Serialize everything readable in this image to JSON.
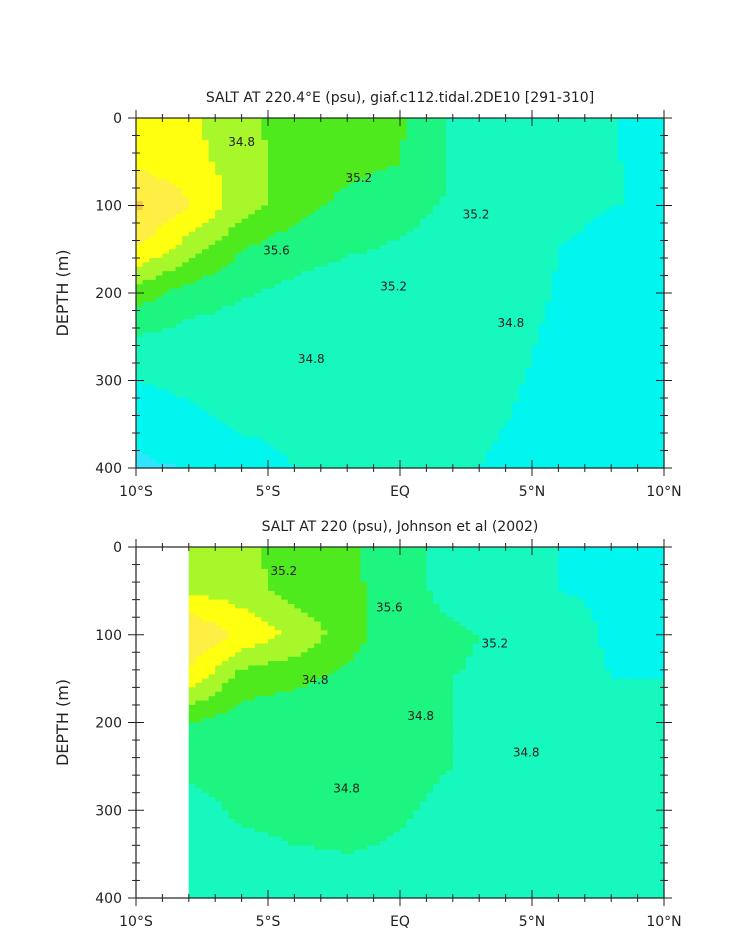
{
  "chart_data": [
    {
      "type": "heatmap",
      "title": "SALT AT 220.4°E (psu), giaf.c112.tidal.2DE10 [291-310]",
      "xlabel": "",
      "ylabel": "DEPTH (m)",
      "x_tick_labels": [
        "10°S",
        "5°S",
        "EQ",
        "5°N",
        "10°N"
      ],
      "x_tick_values": [
        -10,
        -5,
        0,
        5,
        10
      ],
      "xlim": [
        -10,
        10
      ],
      "y_tick_labels": [
        "0",
        "100",
        "200",
        "300",
        "400"
      ],
      "y_tick_values": [
        0,
        100,
        200,
        300,
        400
      ],
      "ylim": [
        0,
        400
      ],
      "y_inverted": true,
      "data_xlim": [
        -10,
        10
      ],
      "contour_levels": [
        34.2,
        34.4,
        34.6,
        34.8,
        35.0,
        35.2,
        35.4,
        35.6,
        35.8,
        36.0
      ],
      "contour_labels": [
        "34.8",
        "35.2",
        "35.2",
        "35.6",
        "35.2",
        "34.8",
        "34.8"
      ],
      "background_value": 34.6,
      "salinity_cells": {
        "lat": [
          -10,
          -8,
          -6,
          -4,
          -2,
          0,
          2,
          4,
          6,
          8,
          10
        ],
        "depth": [
          10,
          50,
          100,
          150,
          200,
          250,
          300,
          350,
          400
        ],
        "values": [
          [
            35.45,
            35.44,
            35.26,
            35.1,
            35.05,
            35.02,
            34.75,
            34.68,
            34.62,
            34.61,
            34.5
          ],
          [
            35.55,
            35.48,
            35.3,
            35.12,
            35.06,
            35.01,
            34.78,
            34.69,
            34.62,
            34.61,
            34.56
          ],
          [
            35.85,
            35.62,
            35.3,
            35.08,
            34.95,
            34.85,
            34.78,
            34.7,
            34.61,
            34.6,
            34.6
          ],
          [
            35.6,
            35.3,
            35.0,
            34.88,
            34.82,
            34.78,
            34.74,
            34.69,
            34.6,
            34.59,
            34.59
          ],
          [
            35.1,
            34.92,
            34.82,
            34.75,
            34.7,
            34.68,
            34.67,
            34.66,
            34.59,
            34.58,
            34.58
          ],
          [
            34.8,
            34.72,
            34.69,
            34.68,
            34.67,
            34.66,
            34.65,
            34.63,
            34.58,
            34.57,
            34.57
          ],
          [
            34.6,
            34.65,
            34.66,
            34.66,
            34.65,
            34.64,
            34.63,
            34.61,
            34.58,
            34.57,
            34.57
          ],
          [
            34.42,
            34.55,
            34.63,
            34.65,
            34.64,
            34.63,
            34.62,
            34.6,
            34.58,
            34.57,
            34.57
          ],
          [
            34.38,
            34.4,
            34.5,
            34.6,
            34.62,
            34.62,
            34.61,
            34.59,
            34.58,
            34.57,
            34.57
          ]
        ]
      }
    },
    {
      "type": "heatmap",
      "title": "SALT AT 220 (psu), Johnson et al (2002)",
      "xlabel": "",
      "ylabel": "DEPTH (m)",
      "x_tick_labels": [
        "10°S",
        "5°S",
        "EQ",
        "5°N",
        "10°N"
      ],
      "x_tick_values": [
        -10,
        -5,
        0,
        5,
        10
      ],
      "xlim": [
        -10,
        10
      ],
      "y_tick_labels": [
        "0",
        "100",
        "200",
        "300",
        "400"
      ],
      "y_tick_values": [
        0,
        100,
        200,
        300,
        400
      ],
      "ylim": [
        0,
        400
      ],
      "y_inverted": true,
      "data_xlim": [
        -8,
        10
      ],
      "contour_levels": [
        34.2,
        34.4,
        34.6,
        34.8,
        35.0,
        35.2,
        35.4,
        35.6,
        35.8,
        36.0
      ],
      "contour_labels": [
        "35.2",
        "35.6",
        "35.2",
        "34.8",
        "34.8",
        "34.8",
        "34.8"
      ],
      "background_value": 34.7,
      "salinity_cells": {
        "lat": [
          -8,
          -6,
          -4,
          -2,
          0,
          2,
          4,
          6,
          8,
          10
        ],
        "depth": [
          10,
          50,
          100,
          150,
          200,
          250,
          300,
          350,
          400
        ],
        "values": [
          [
            35.3,
            35.26,
            35.1,
            35.05,
            34.82,
            34.78,
            34.65,
            34.6,
            34.45,
            34.4
          ],
          [
            35.38,
            35.3,
            35.12,
            35.08,
            34.85,
            34.76,
            34.7,
            34.6,
            34.55,
            34.5
          ],
          [
            35.8,
            35.55,
            35.35,
            35.1,
            34.86,
            34.82,
            34.78,
            34.76,
            34.55,
            34.6
          ],
          [
            35.55,
            35.1,
            35.05,
            34.95,
            34.84,
            34.8,
            34.78,
            34.75,
            34.6,
            34.6
          ],
          [
            35.0,
            34.9,
            34.86,
            34.84,
            34.82,
            34.8,
            34.78,
            34.76,
            34.74,
            34.74
          ],
          [
            34.82,
            34.84,
            34.84,
            34.83,
            34.82,
            34.8,
            34.76,
            34.74,
            34.73,
            34.73
          ],
          [
            34.76,
            34.82,
            34.84,
            34.83,
            34.81,
            34.78,
            34.75,
            34.74,
            34.73,
            34.73
          ],
          [
            34.74,
            34.76,
            34.79,
            34.8,
            34.79,
            34.76,
            34.74,
            34.73,
            34.72,
            34.72
          ],
          [
            34.72,
            34.74,
            34.76,
            34.77,
            34.77,
            34.75,
            34.74,
            34.73,
            34.72,
            34.72
          ]
        ]
      }
    }
  ],
  "colors": {
    "band_36.0": "#FF9A3A",
    "band_35.8": "#F9C43A",
    "band_35.6": "#FFEF45",
    "band_35.4": "#FFFF10",
    "band_35.2": "#A8F72A",
    "band_35.0": "#4EEA1E",
    "band_34.8": "#1DF580",
    "band_34.6": "#16F8BE",
    "band_34.4": "#00F6EE",
    "band_34.2": "#2FE5FF",
    "band_low": "#0BB8E8",
    "line": "#222222"
  }
}
